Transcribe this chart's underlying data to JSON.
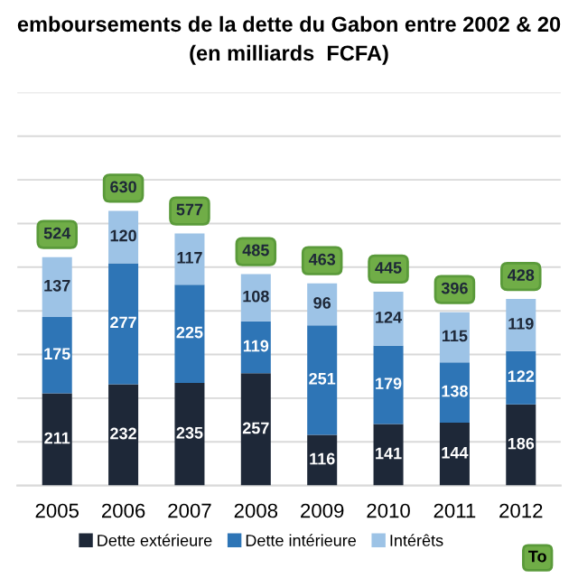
{
  "chart_data": {
    "type": "bar",
    "title": "emboursements de la dette du Gabon entre 2002 & 20",
    "subtitle": "(en milliards  FCFA)",
    "categories": [
      "2005",
      "2006",
      "2007",
      "2008",
      "2009",
      "2010",
      "2011",
      "2012"
    ],
    "series": [
      {
        "name": "Dette extérieure",
        "color": "#1e2838",
        "values": [
          211,
          232,
          235,
          257,
          116,
          141,
          144,
          186
        ]
      },
      {
        "name": "Dette intérieure",
        "color": "#2e75b6",
        "values": [
          175,
          277,
          225,
          119,
          251,
          179,
          138,
          122
        ]
      },
      {
        "name": "Intérêts",
        "color": "#9dc3e6",
        "values": [
          137,
          120,
          117,
          108,
          96,
          124,
          115,
          119
        ]
      }
    ],
    "stacked": true,
    "data_labels": true,
    "totals": [
      "524",
      "630",
      "577",
      "485",
      "463",
      "445",
      "396",
      "428"
    ],
    "annotations": [
      "To"
    ],
    "ylim": [
      0,
      900
    ],
    "yticks": [
      {
        "value": 0,
        "label": null
      },
      {
        "value": 100,
        "label": null
      },
      {
        "value": 200,
        "label": null
      },
      {
        "value": 300,
        "label": null
      },
      {
        "value": 400,
        "label": null
      },
      {
        "value": 500,
        "label": null
      },
      {
        "value": 600,
        "label": null
      },
      {
        "value": 700,
        "label": null
      },
      {
        "value": 800,
        "label": null
      },
      {
        "value": 900,
        "label": null
      }
    ],
    "tick_labels": "x",
    "grid": "y",
    "legend": "bottom"
  }
}
